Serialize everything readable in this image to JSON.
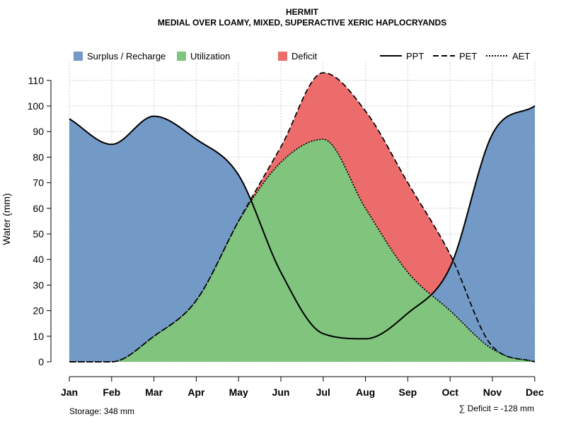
{
  "chart_data": {
    "type": "area",
    "title": "HERMIT",
    "subtitle": "MEDIAL OVER LOAMY, MIXED, SUPERACTIVE XERIC HAPLOCRYANDS",
    "ylabel": "Water (mm)",
    "xlabel": "",
    "ylim": [
      0,
      115
    ],
    "yticks": [
      0,
      10,
      20,
      30,
      40,
      50,
      60,
      70,
      80,
      90,
      100,
      110
    ],
    "grid": true,
    "categories": [
      "Jan",
      "Feb",
      "Mar",
      "Apr",
      "May",
      "Jun",
      "Jul",
      "Aug",
      "Sep",
      "Oct",
      "Nov",
      "Dec"
    ],
    "series": [
      {
        "name": "PPT",
        "style": "solid",
        "values": [
          95,
          85,
          96,
          87,
          73,
          35,
          11,
          9,
          19,
          37,
          89,
          100
        ]
      },
      {
        "name": "PET",
        "style": "dashed",
        "values": [
          0,
          0,
          10,
          24,
          55,
          84,
          113,
          98,
          70,
          42,
          6,
          0
        ]
      },
      {
        "name": "AET",
        "style": "dotted",
        "values": [
          0,
          0,
          10,
          24,
          55,
          78,
          87,
          60,
          35,
          20,
          5,
          0
        ]
      }
    ],
    "areas": [
      {
        "name": "Surplus / Recharge",
        "color": "#7399c6"
      },
      {
        "name": "Utilization",
        "color": "#80c47d"
      },
      {
        "name": "Deficit",
        "color": "#ec6c6c"
      }
    ],
    "legend_position": "top",
    "storage_label": "Storage: 348 mm",
    "deficit_label": "∑ Deficit = -128 mm"
  }
}
